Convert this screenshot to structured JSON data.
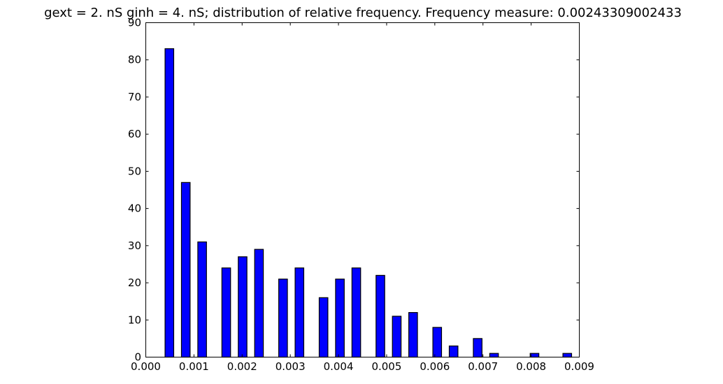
{
  "chart_data": {
    "type": "bar",
    "title": "gext = 2. nS ginh = 4. nS; distribution of relative frequency. Frequency measure: 0.00243309002433",
    "xlabel": "",
    "ylabel": "",
    "xlim": [
      0.0,
      0.009
    ],
    "ylim": [
      0,
      90
    ],
    "x_ticks": [
      "0.000",
      "0.001",
      "0.002",
      "0.003",
      "0.004",
      "0.005",
      "0.006",
      "0.007",
      "0.008",
      "0.009"
    ],
    "y_ticks": [
      "0",
      "10",
      "20",
      "30",
      "40",
      "50",
      "60",
      "70",
      "80",
      "90"
    ],
    "bar_width": 0.00018,
    "bar_color": "#0000ff",
    "edge_color": "#000000",
    "grid": false,
    "bars": [
      {
        "x": 0.00049,
        "value": 83
      },
      {
        "x": 0.00083,
        "value": 47
      },
      {
        "x": 0.00117,
        "value": 31
      },
      {
        "x": 0.00167,
        "value": 24
      },
      {
        "x": 0.00201,
        "value": 27
      },
      {
        "x": 0.00235,
        "value": 29
      },
      {
        "x": 0.00285,
        "value": 21
      },
      {
        "x": 0.00319,
        "value": 24
      },
      {
        "x": 0.00369,
        "value": 16
      },
      {
        "x": 0.00403,
        "value": 21
      },
      {
        "x": 0.00437,
        "value": 24
      },
      {
        "x": 0.00487,
        "value": 22
      },
      {
        "x": 0.00521,
        "value": 11
      },
      {
        "x": 0.00555,
        "value": 12
      },
      {
        "x": 0.00605,
        "value": 8
      },
      {
        "x": 0.00639,
        "value": 3
      },
      {
        "x": 0.00689,
        "value": 5
      },
      {
        "x": 0.00723,
        "value": 1
      },
      {
        "x": 0.00807,
        "value": 1
      },
      {
        "x": 0.00875,
        "value": 1
      }
    ]
  }
}
